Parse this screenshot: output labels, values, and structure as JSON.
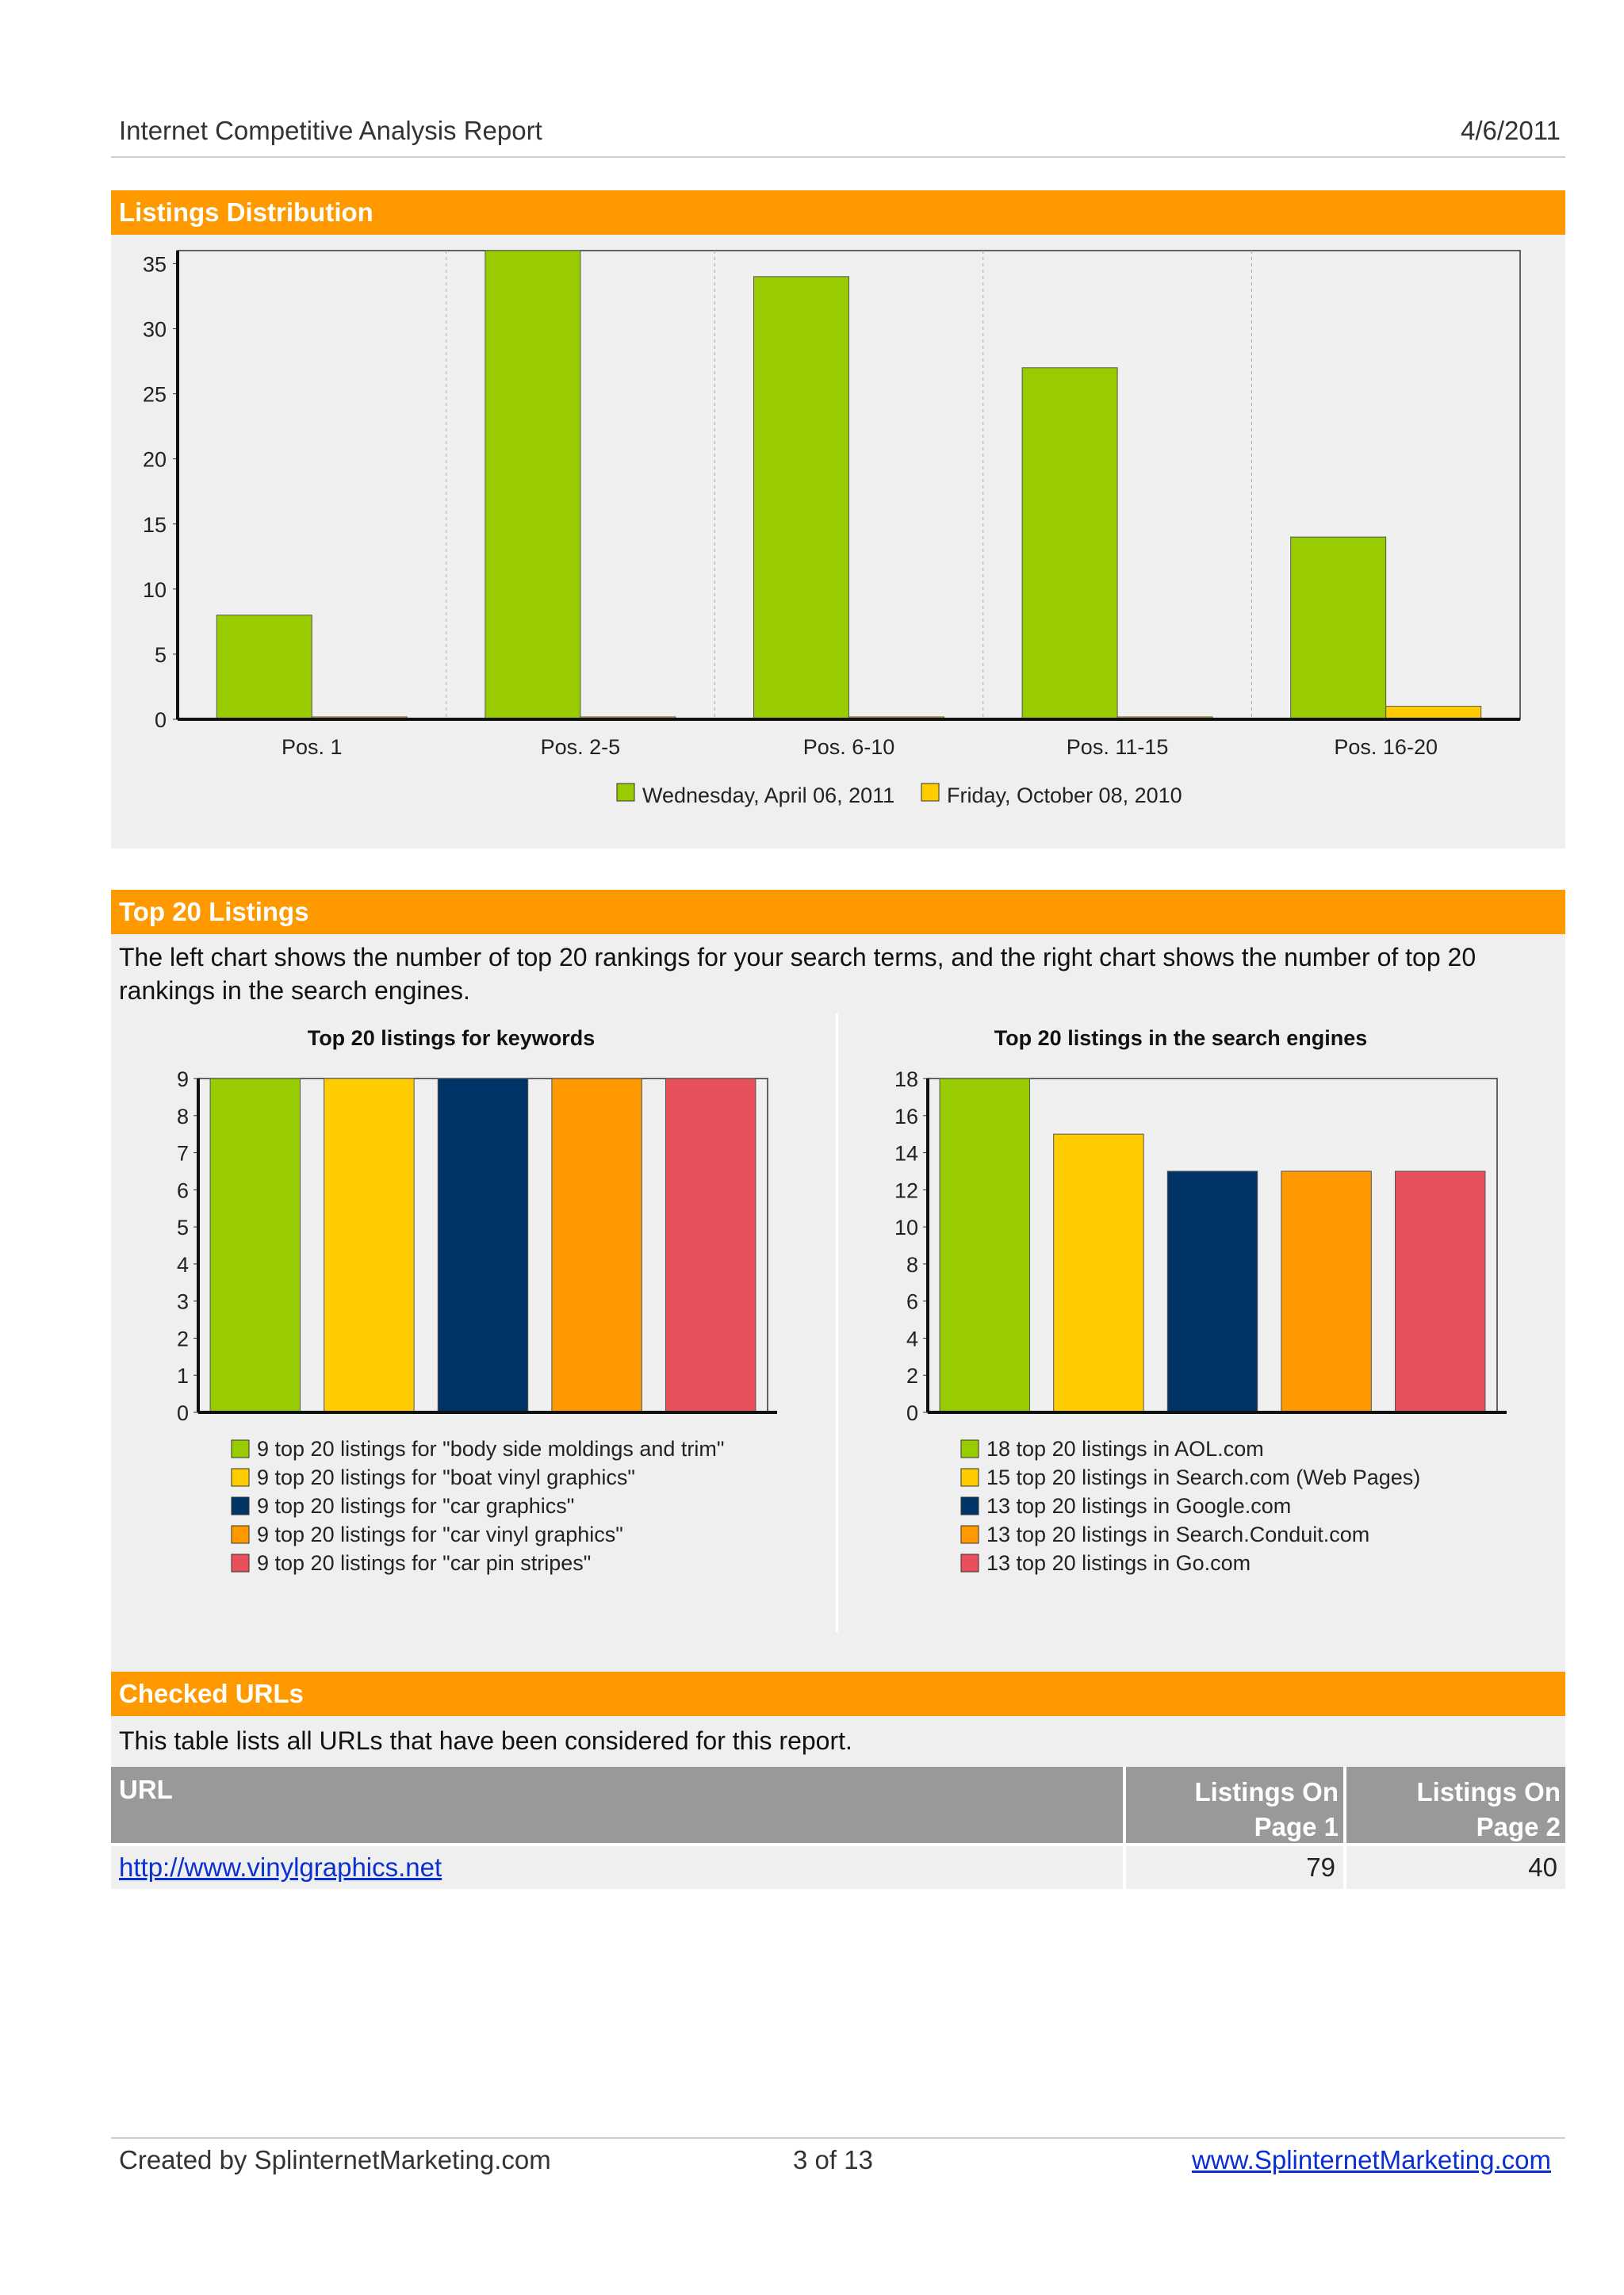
{
  "header": {
    "title": "Internet Competitive Analysis Report",
    "date": "4/6/2011"
  },
  "sections": {
    "listings_distribution": {
      "title": "Listings Distribution"
    },
    "top20": {
      "title": "Top 20 Listings",
      "description": "The left chart shows the number of top 20 rankings for your search terms, and the right chart shows the number of top 20 rankings in the search engines."
    },
    "checked_urls": {
      "title": "Checked URLs",
      "description": "This table lists all URLs that have been considered for this report.",
      "columns": [
        "URL",
        "Listings On Page 1",
        "Listings On Page 2"
      ],
      "rows": [
        {
          "url": "http://www.vinylgraphics.net",
          "page1": "79",
          "page2": "40"
        }
      ]
    }
  },
  "colors": {
    "orange": "#ff9900",
    "green": "#99cc00",
    "yellow": "#ffcc00",
    "navy": "#003366",
    "red": "#e8505b"
  },
  "chart_data": [
    {
      "type": "bar",
      "categories": [
        "Pos. 1",
        "Pos. 2-5",
        "Pos. 6-10",
        "Pos. 11-15",
        "Pos. 16-20"
      ],
      "series": [
        {
          "name": "Wednesday, April 06, 2011",
          "color": "#99cc00",
          "values": [
            8,
            36,
            34,
            27,
            14
          ]
        },
        {
          "name": "Friday, October 08, 2010",
          "color": "#ffcc00",
          "values": [
            0,
            0,
            0,
            0,
            1
          ]
        }
      ],
      "ylim": [
        0,
        36
      ],
      "yticks": [
        "0",
        "5",
        "10",
        "15",
        "20",
        "25",
        "30",
        "35"
      ],
      "legend": "bottom"
    },
    {
      "type": "bar",
      "title": "Top 20 listings for keywords",
      "values": [
        9,
        9,
        9,
        9,
        9
      ],
      "colors": [
        "#99cc00",
        "#ffcc00",
        "#003366",
        "#ff9900",
        "#e8505b"
      ],
      "ylim": [
        0,
        9
      ],
      "yticks": [
        "0",
        "1",
        "2",
        "3",
        "4",
        "5",
        "6",
        "7",
        "8",
        "9"
      ],
      "legend_items": [
        "9 top 20 listings for \"body side moldings and trim\"",
        "9 top 20 listings for \"boat vinyl graphics\"",
        "9 top 20 listings for \"car graphics\"",
        "9 top 20 listings for \"car vinyl graphics\"",
        "9 top 20 listings for \"car pin stripes\""
      ]
    },
    {
      "type": "bar",
      "title": "Top 20 listings in the search engines",
      "values": [
        18,
        15,
        13,
        13,
        13
      ],
      "colors": [
        "#99cc00",
        "#ffcc00",
        "#003366",
        "#ff9900",
        "#e8505b"
      ],
      "ylim": [
        0,
        18
      ],
      "yticks": [
        "0",
        "2",
        "4",
        "6",
        "8",
        "10",
        "12",
        "14",
        "16",
        "18"
      ],
      "legend_items": [
        "18 top 20 listings in AOL.com",
        "15 top 20 listings in Search.com (Web Pages)",
        "13 top 20 listings in Google.com",
        "13 top 20 listings in Search.Conduit.com",
        "13 top 20 listings in Go.com"
      ]
    }
  ],
  "footer": {
    "created_by": "Created by SplinternetMarketing.com",
    "page": "3 of 13",
    "link": "www.SplinternetMarketing.com"
  }
}
